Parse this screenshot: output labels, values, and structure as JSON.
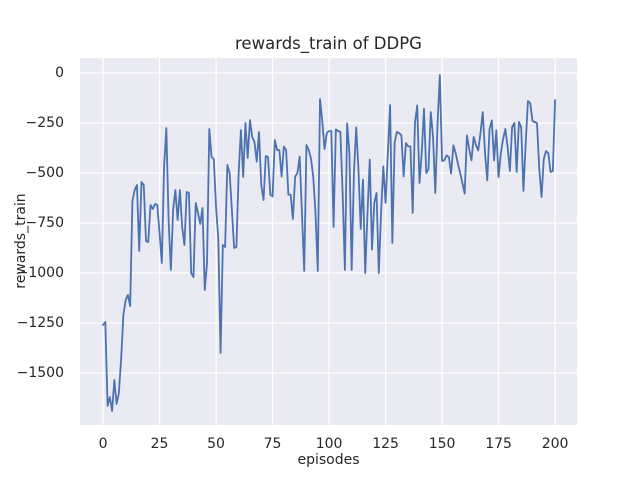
{
  "figure": {
    "title": "rewards_train of DDPG",
    "xlabel": "episodes",
    "ylabel": "rewards_train"
  },
  "colors": {
    "line": "#4c72b0",
    "axes_background": "#eaeaf2",
    "grid": "#ffffff",
    "text": "#262626",
    "figure_background": "#ffffff"
  },
  "chart_data": {
    "type": "line",
    "title": "rewards_train of DDPG",
    "xlabel": "episodes",
    "ylabel": "rewards_train",
    "xlim": [
      -10.2,
      209.7
    ],
    "ylim": [
      -1760,
      75
    ],
    "grid": true,
    "legend": false,
    "xticks": {
      "values": [
        0,
        25,
        50,
        75,
        100,
        125,
        150,
        175,
        200
      ],
      "labels": [
        "0",
        "25",
        "50",
        "75",
        "100",
        "125",
        "150",
        "175",
        "200"
      ]
    },
    "yticks": {
      "values": [
        0,
        -250,
        -500,
        -750,
        -1000,
        -1250,
        -1500
      ],
      "labels": [
        "0",
        "−250",
        "−500",
        "−750",
        "−1000",
        "−1250",
        "−1500"
      ]
    },
    "series": [
      {
        "name": "rewards_train",
        "x_start": 0,
        "x_step": 1,
        "values": [
          -1260,
          -1245,
          -1665,
          -1620,
          -1690,
          -1535,
          -1655,
          -1600,
          -1430,
          -1210,
          -1135,
          -1110,
          -1165,
          -640,
          -585,
          -560,
          -890,
          -545,
          -560,
          -840,
          -845,
          -660,
          -680,
          -655,
          -660,
          -800,
          -950,
          -470,
          -275,
          -735,
          -985,
          -685,
          -585,
          -735,
          -585,
          -770,
          -860,
          -595,
          -600,
          -1000,
          -1020,
          -650,
          -700,
          -755,
          -675,
          -1085,
          -950,
          -280,
          -420,
          -430,
          -670,
          -835,
          -1400,
          -860,
          -870,
          -460,
          -500,
          -685,
          -875,
          -870,
          -500,
          -285,
          -520,
          -250,
          -425,
          -235,
          -320,
          -345,
          -443,
          -295,
          -560,
          -635,
          -415,
          -420,
          -608,
          -617,
          -335,
          -385,
          -385,
          -518,
          -368,
          -385,
          -608,
          -608,
          -730,
          -518,
          -500,
          -418,
          -700,
          -990,
          -360,
          -385,
          -427,
          -520,
          -700,
          -990,
          -130,
          -240,
          -380,
          -300,
          -290,
          -290,
          -770,
          -282,
          -290,
          -295,
          -600,
          -985,
          -252,
          -400,
          -985,
          -500,
          -272,
          -480,
          -780,
          -533,
          -1000,
          -700,
          -433,
          -883,
          -650,
          -600,
          -1000,
          -700,
          -467,
          -650,
          -400,
          -160,
          -850,
          -350,
          -295,
          -300,
          -312,
          -517,
          -350,
          -367,
          -367,
          -700,
          -250,
          -162,
          -550,
          -400,
          -178,
          -500,
          -480,
          -195,
          -320,
          -600,
          -255,
          -10,
          -440,
          -437,
          -412,
          -420,
          -503,
          -362,
          -400,
          -453,
          -500,
          -550,
          -603,
          -312,
          -380,
          -437,
          -320,
          -360,
          -387,
          -300,
          -195,
          -400,
          -537,
          -280,
          -237,
          -437,
          -287,
          -520,
          -400,
          -330,
          -280,
          -370,
          -490,
          -270,
          -250,
          -495,
          -245,
          -270,
          -590,
          -350,
          -140,
          -150,
          -240,
          -245,
          -250,
          -480,
          -620,
          -430,
          -390,
          -400,
          -495,
          -490,
          -135
        ]
      }
    ]
  }
}
